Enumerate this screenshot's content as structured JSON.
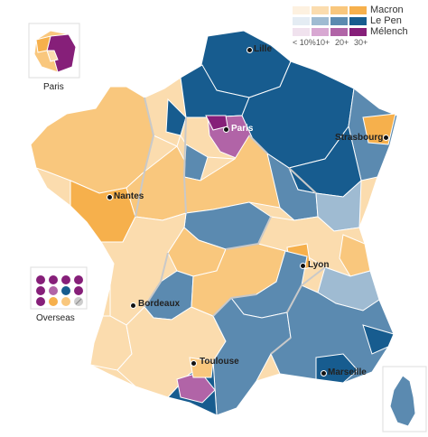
{
  "legend": {
    "rows": [
      {
        "label": "Macron",
        "colors": [
          "#fdf1e0",
          "#fbdcae",
          "#f9c77d",
          "#f6b04c"
        ]
      },
      {
        "label": "Le Pen",
        "colors": [
          "#e4ecf3",
          "#9fbbd2",
          "#5b8ab0",
          "#175c8f"
        ]
      },
      {
        "label": "Mélench",
        "colors": [
          "#f0e2ee",
          "#d8a8d2",
          "#b164a7",
          "#861f79"
        ]
      }
    ],
    "ticks": [
      "< 10%",
      "10+",
      "20+",
      "30+"
    ]
  },
  "cities": {
    "lille": "Lille",
    "paris": "Paris",
    "strasbourg": "Strasbourg",
    "nantes": "Nantes",
    "lyon": "Lyon",
    "bordeaux": "Bordeaux",
    "toulouse": "Toulouse",
    "marseille": "Marseille"
  },
  "insets": {
    "paris": "Paris",
    "overseas": "Overseas"
  },
  "colors": {
    "macron_light": "#fbdcae",
    "macron_mid": "#f9c77d",
    "macron_strong": "#f6b04c",
    "lepen_light": "#9fbbd2",
    "lepen_mid": "#5b8ab0",
    "lepen_strong": "#175c8f",
    "melenchon_mid": "#b164a7",
    "melenchon_strong": "#861f79"
  }
}
